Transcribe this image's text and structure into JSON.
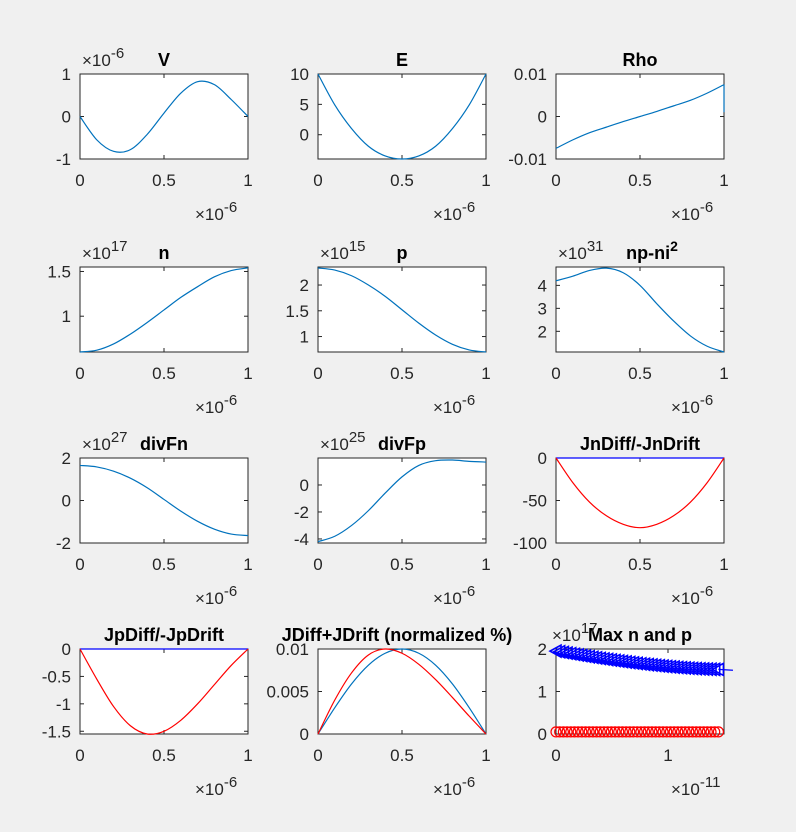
{
  "figure": {
    "background": "#f0f0f0",
    "axes_color": "#262626"
  },
  "chart_data": [
    {
      "type": "line",
      "title": "V",
      "xlim": [
        0,
        1
      ],
      "ylim": [
        -1,
        1
      ],
      "xticks": [
        "0",
        "0.5",
        "1"
      ],
      "yticks": [
        "-1",
        "0",
        "1"
      ],
      "x_exponent": "-6",
      "y_exponent": "-6",
      "series": [
        {
          "color": "#0072BD",
          "values": [
            0.0,
            -0.55,
            -0.82,
            -0.78,
            -0.42,
            0.08,
            0.55,
            0.82,
            0.75,
            0.4,
            0.0
          ]
        }
      ]
    },
    {
      "type": "line",
      "title": "E",
      "xlim": [
        0,
        1
      ],
      "ylim": [
        -4,
        10
      ],
      "xticks": [
        "0",
        "0.5",
        "1"
      ],
      "yticks": [
        "0",
        "5",
        "10"
      ],
      "x_exponent": "-6",
      "y_exponent": "",
      "series": [
        {
          "color": "#0072BD",
          "values": [
            10.0,
            4.9,
            1.0,
            -1.9,
            -3.5,
            -4.0,
            -3.5,
            -1.9,
            1.0,
            4.9,
            10.0
          ]
        }
      ]
    },
    {
      "type": "line",
      "title": "Rho",
      "xlim": [
        0,
        1
      ],
      "ylim": [
        -0.01,
        0.01
      ],
      "xticks": [
        "0",
        "0.5",
        "1"
      ],
      "yticks": [
        "-0.01",
        "0",
        "0.01"
      ],
      "x_exponent": "-6",
      "y_exponent": "",
      "series": [
        {
          "color": "#0072BD",
          "values": [
            -0.0075,
            -0.0055,
            -0.0038,
            -0.0025,
            -0.0012,
            0.0,
            0.0012,
            0.0025,
            0.0038,
            0.0055,
            0.0075
          ]
        }
      ]
    },
    {
      "type": "line",
      "title": "n",
      "xlim": [
        0,
        1
      ],
      "ylim": [
        0.6,
        1.55
      ],
      "xticks": [
        "0",
        "0.5",
        "1"
      ],
      "yticks": [
        "1",
        "1.5"
      ],
      "x_exponent": "-6",
      "y_exponent": "17",
      "series": [
        {
          "color": "#0072BD",
          "values": [
            0.6,
            0.62,
            0.69,
            0.8,
            0.93,
            1.07,
            1.21,
            1.33,
            1.44,
            1.51,
            1.54
          ]
        }
      ]
    },
    {
      "type": "line",
      "title": "p",
      "xlim": [
        0,
        1
      ],
      "ylim": [
        0.7,
        2.35
      ],
      "xticks": [
        "0",
        "0.5",
        "1"
      ],
      "yticks": [
        "1",
        "1.5",
        "2"
      ],
      "x_exponent": "-6",
      "y_exponent": "15",
      "series": [
        {
          "color": "#0072BD",
          "values": [
            2.33,
            2.29,
            2.18,
            2.0,
            1.78,
            1.52,
            1.26,
            1.03,
            0.85,
            0.74,
            0.7
          ]
        }
      ]
    },
    {
      "type": "line",
      "title": "np-ni",
      "title_superscript": "2",
      "xlim": [
        0,
        1
      ],
      "ylim": [
        1.1,
        4.8
      ],
      "xticks": [
        "0",
        "0.5",
        "1"
      ],
      "yticks": [
        "2",
        "3",
        "4"
      ],
      "x_exponent": "-6",
      "y_exponent": "31",
      "series": [
        {
          "color": "#0072BD",
          "values": [
            4.2,
            4.4,
            4.65,
            4.75,
            4.55,
            4.0,
            3.2,
            2.45,
            1.8,
            1.35,
            1.1
          ]
        }
      ]
    },
    {
      "type": "line",
      "title": "divFn",
      "xlim": [
        0,
        1
      ],
      "ylim": [
        -2,
        2
      ],
      "xticks": [
        "0",
        "0.5",
        "1"
      ],
      "yticks": [
        "-2",
        "0",
        "2"
      ],
      "x_exponent": "-6",
      "y_exponent": "27",
      "series": [
        {
          "color": "#0072BD",
          "values": [
            1.65,
            1.58,
            1.38,
            1.05,
            0.6,
            0.05,
            -0.5,
            -0.98,
            -1.35,
            -1.58,
            -1.65
          ]
        }
      ]
    },
    {
      "type": "line",
      "title": "divFp",
      "xlim": [
        0,
        1
      ],
      "ylim": [
        -4.3,
        2
      ],
      "xticks": [
        "0",
        "0.5",
        "1"
      ],
      "yticks": [
        "-4",
        "-2",
        "0"
      ],
      "x_exponent": "-6",
      "y_exponent": "25",
      "series": [
        {
          "color": "#0072BD",
          "values": [
            -4.2,
            -3.8,
            -3.0,
            -1.9,
            -0.6,
            0.6,
            1.45,
            1.8,
            1.85,
            1.75,
            1.7
          ]
        }
      ]
    },
    {
      "type": "line",
      "title": "JnDiff/-JnDrift",
      "xlim": [
        0,
        1
      ],
      "ylim": [
        -100,
        0
      ],
      "xticks": [
        "0",
        "0.5",
        "1"
      ],
      "yticks": [
        "-100",
        "-50",
        "0"
      ],
      "x_exponent": "-6",
      "y_exponent": "",
      "series": [
        {
          "color": "#0000FF",
          "values": [
            0,
            0,
            0,
            0,
            0,
            0,
            0,
            0,
            0,
            0,
            0
          ]
        },
        {
          "color": "#FF0000",
          "values": [
            0,
            -29,
            -52,
            -68,
            -78,
            -82,
            -78,
            -68,
            -52,
            -29,
            0
          ]
        }
      ]
    },
    {
      "type": "line",
      "title": "JpDiff/-JpDrift",
      "xlim": [
        0,
        1
      ],
      "ylim": [
        -1.55,
        0
      ],
      "xticks": [
        "0",
        "0.5",
        "1"
      ],
      "yticks": [
        "-1.5",
        "-1",
        "-0.5",
        "0"
      ],
      "x_exponent": "-6",
      "y_exponent": "",
      "series": [
        {
          "color": "#0000FF",
          "values": [
            0,
            0,
            0,
            0,
            0,
            0,
            0,
            0,
            0,
            0,
            0
          ]
        },
        {
          "color": "#FF0000",
          "values": [
            0,
            -0.55,
            -1.05,
            -1.4,
            -1.55,
            -1.5,
            -1.3,
            -1.0,
            -0.65,
            -0.3,
            0
          ]
        }
      ]
    },
    {
      "type": "line",
      "title": "JDiff+JDrift (normalized %)",
      "xlim": [
        0,
        1
      ],
      "ylim": [
        0,
        0.01
      ],
      "xticks": [
        "0",
        "0.5",
        "1"
      ],
      "yticks": [
        "0",
        "0.005",
        "0.01"
      ],
      "x_exponent": "-6",
      "y_exponent": "",
      "series": [
        {
          "color": "#0072BD",
          "values": [
            0,
            0.0031,
            0.0059,
            0.0081,
            0.0095,
            0.01,
            0.0095,
            0.0081,
            0.0059,
            0.0031,
            0
          ]
        },
        {
          "color": "#FF0000",
          "values": [
            0,
            0.004,
            0.0072,
            0.0093,
            0.01,
            0.0095,
            0.0082,
            0.0064,
            0.0043,
            0.0021,
            0
          ]
        }
      ]
    },
    {
      "type": "scatter",
      "title": "Max n and p",
      "xlim": [
        0,
        1.5
      ],
      "ylim": [
        0,
        2
      ],
      "xticks": [
        "0",
        "1"
      ],
      "yticks": [
        "0",
        "1",
        "2"
      ],
      "x_exponent": "-11",
      "y_exponent": "17",
      "series": [
        {
          "color": "#0000FF",
          "marker": "triangle-left",
          "count": 45,
          "x_start": 0.0,
          "x_end": 1.45,
          "y_start": 1.95,
          "y_end": 1.52,
          "tail_x": 1.58,
          "tail_y": 1.5
        },
        {
          "color": "#FF0000",
          "marker": "circle",
          "count": 45,
          "x_start": 0.0,
          "x_end": 1.45,
          "y_start": 0.05,
          "y_end": 0.05
        }
      ]
    }
  ]
}
